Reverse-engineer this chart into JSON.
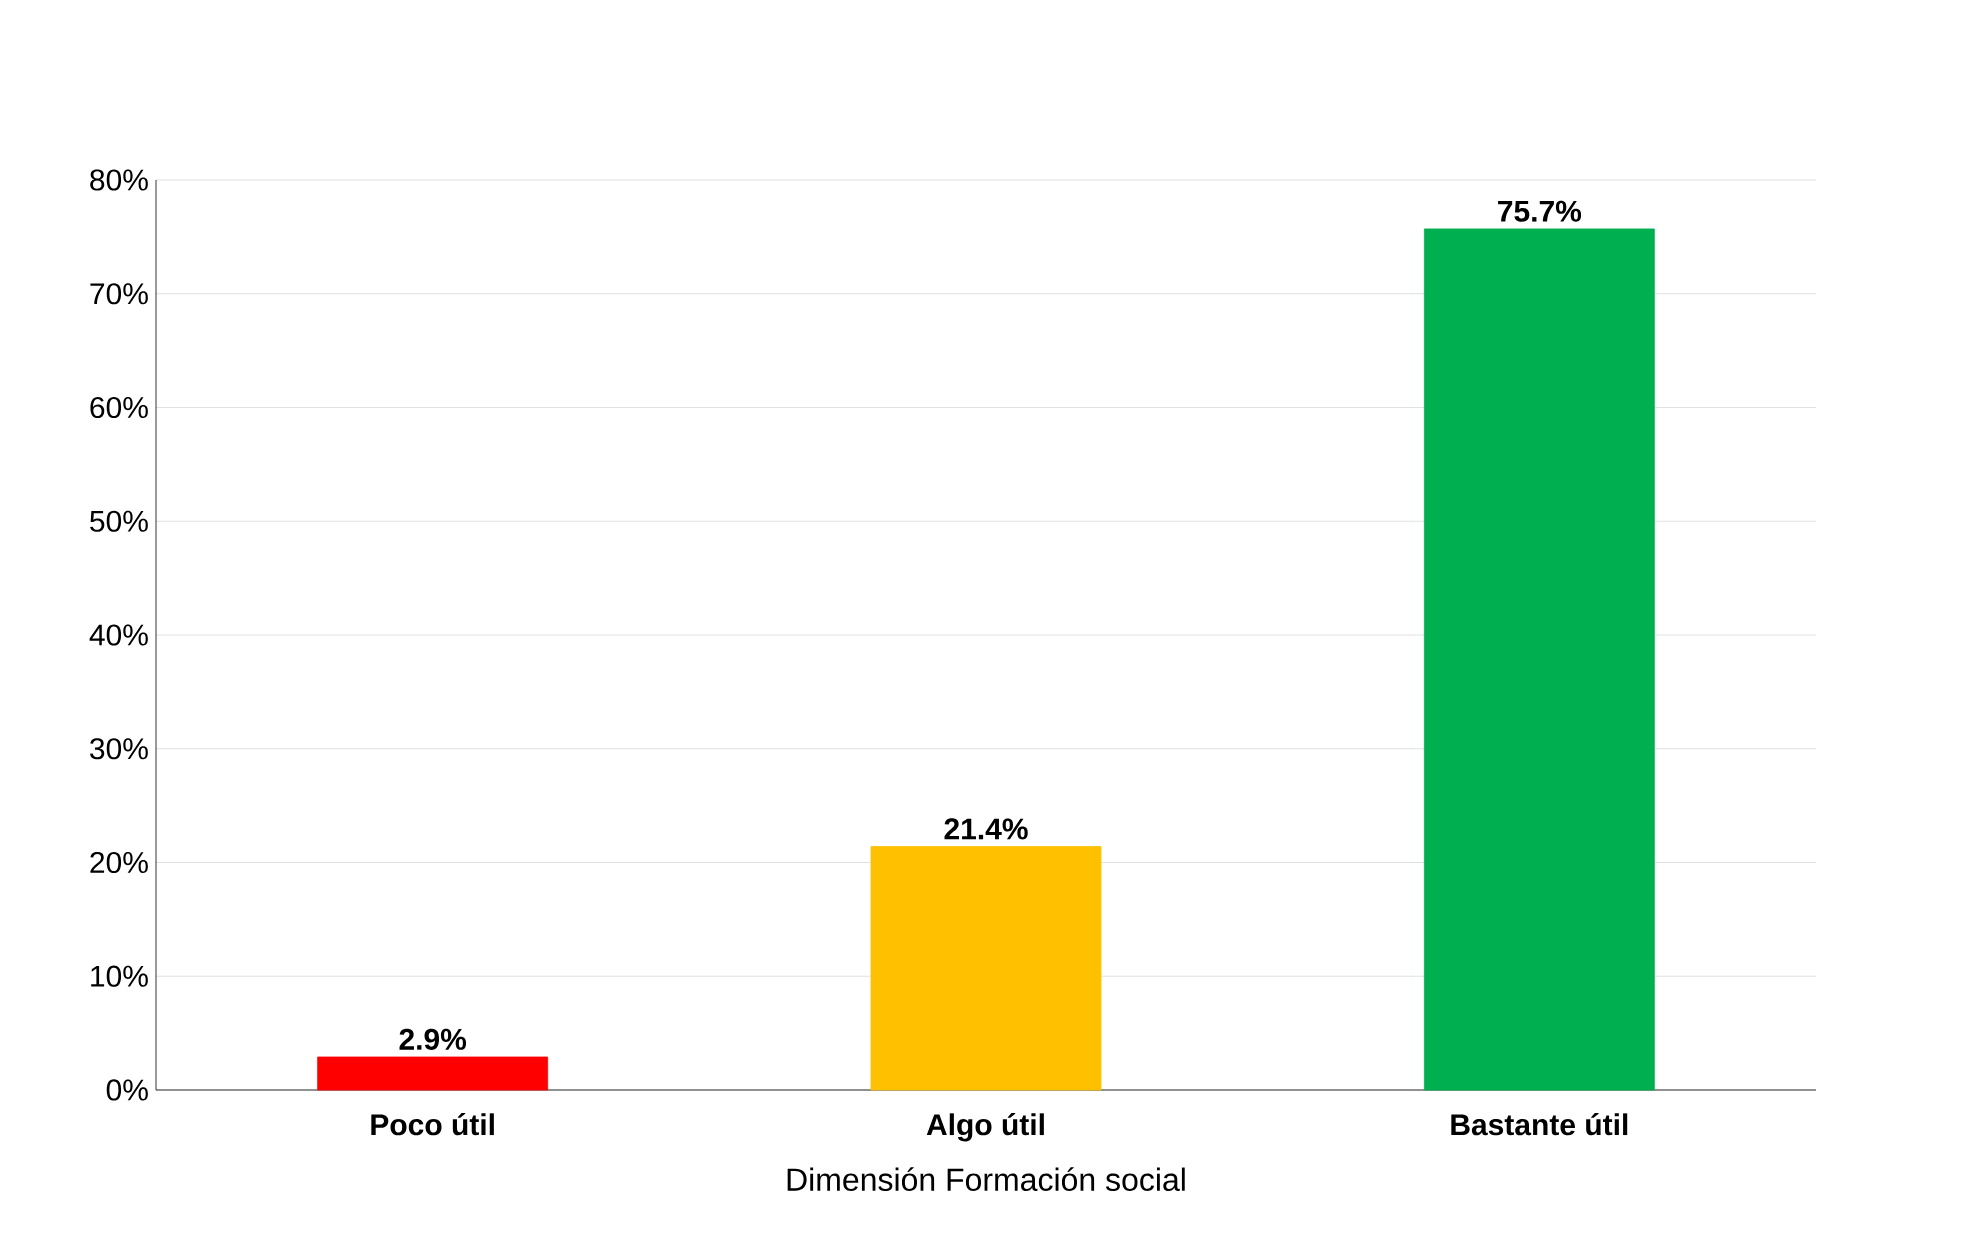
{
  "chart_data": {
    "type": "bar",
    "categories": [
      "Poco útil",
      "Algo útil",
      "Bastante útil"
    ],
    "values": [
      2.9,
      21.4,
      75.7
    ],
    "colors": [
      "#ff0000",
      "#ffc000",
      "#00b050"
    ],
    "value_labels": [
      "2.9%",
      "21.4%",
      "75.7%"
    ],
    "xlabel": "Dimensión Formación social",
    "ylim": [
      0,
      80
    ],
    "yticks": [
      {
        "value": 0,
        "label": "0%"
      },
      {
        "value": 10,
        "label": "10%"
      },
      {
        "value": 20,
        "label": "20%"
      },
      {
        "value": 30,
        "label": "30%"
      },
      {
        "value": 40,
        "label": "40%"
      },
      {
        "value": 50,
        "label": "50%"
      },
      {
        "value": 60,
        "label": "60%"
      },
      {
        "value": 70,
        "label": "70%"
      },
      {
        "value": 80,
        "label": "80%"
      }
    ],
    "grid": "y"
  }
}
